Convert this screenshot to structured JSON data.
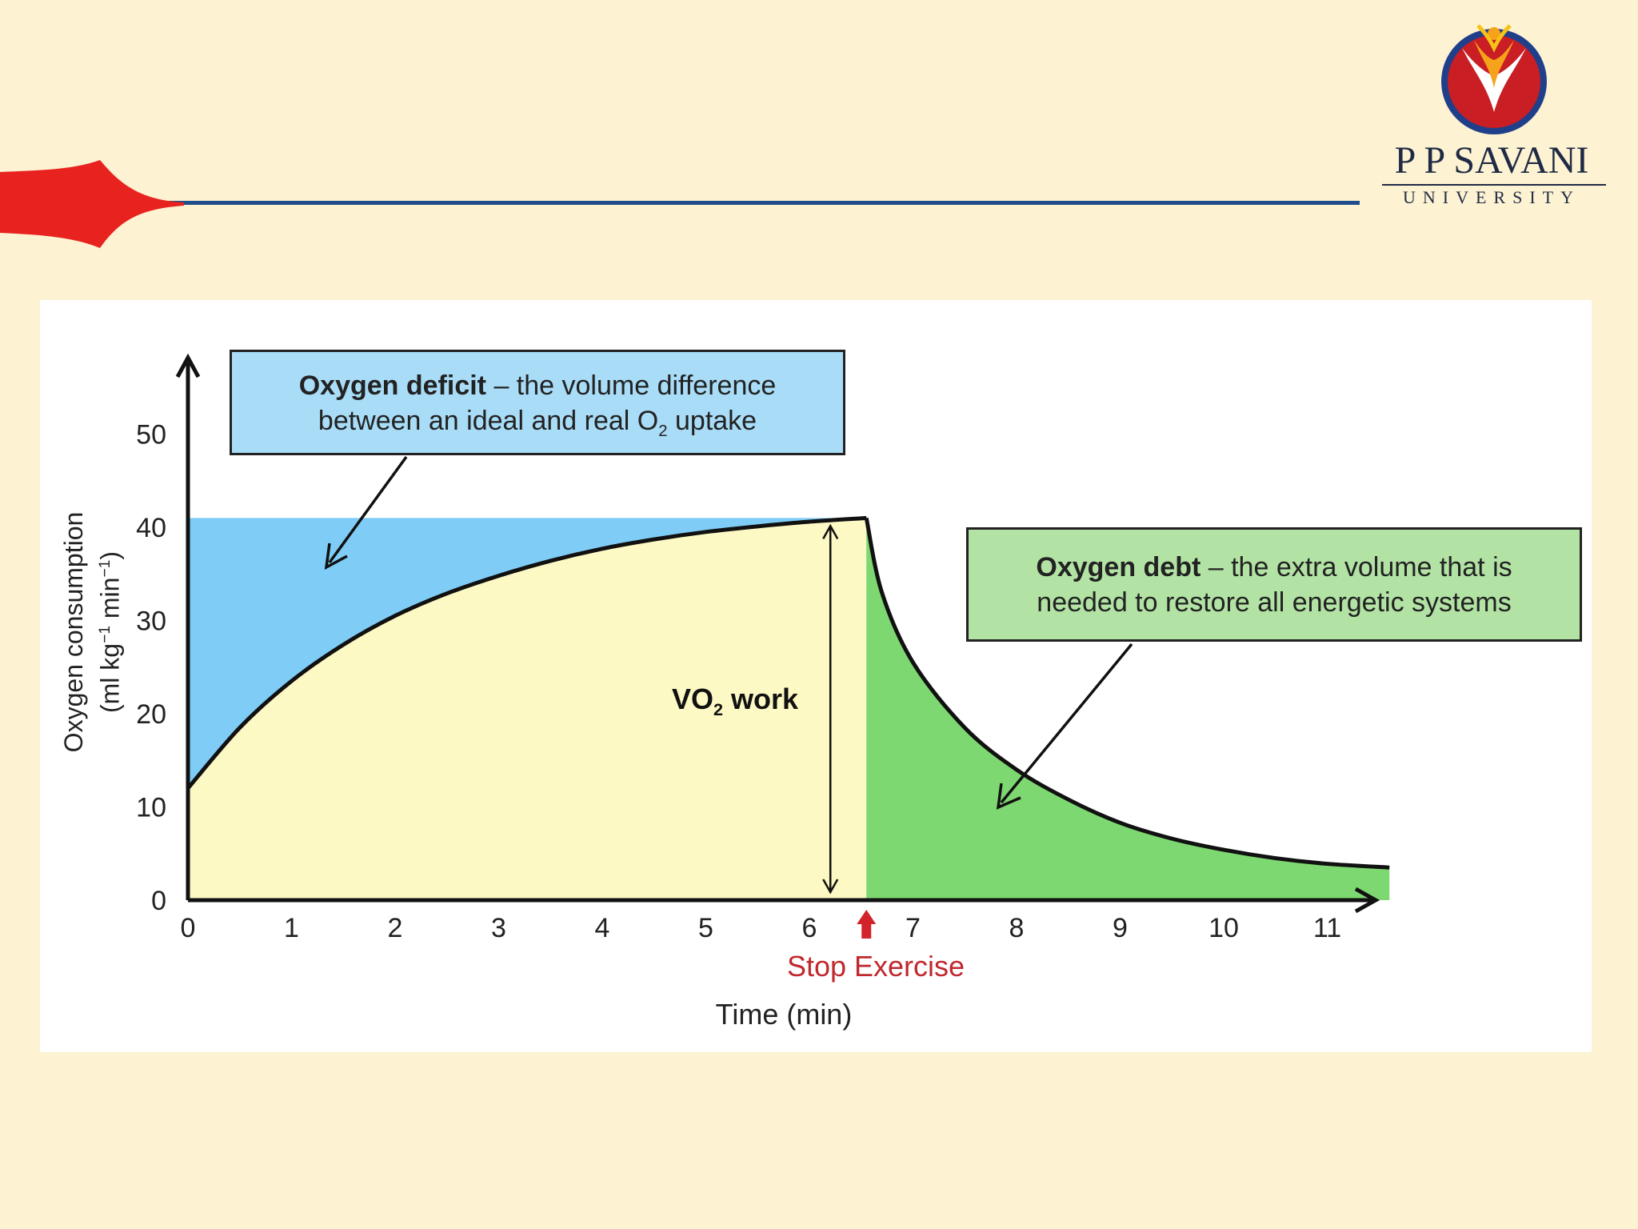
{
  "brand": {
    "name": "P P SAVANI",
    "subtitle": "UNIVERSITY",
    "header_line_color": "#1f4e8c",
    "swoosh_color": "#e8231f"
  },
  "chart_data": {
    "type": "area",
    "xlabel": "Time (min)",
    "ylabel_line1": "Oxygen consumption",
    "ylabel_line2_base": "(ml kg",
    "ylabel_line2_sup1": "−1",
    "ylabel_line2_mid": " min",
    "ylabel_line2_sup2": "−1",
    "ylabel_line2_end": ")",
    "x_ticks": [
      "0",
      "1",
      "2",
      "3",
      "4",
      "5",
      "6",
      "7",
      "8",
      "9",
      "10",
      "11"
    ],
    "y_ticks": [
      "0",
      "10",
      "20",
      "30",
      "40",
      "50"
    ],
    "xlim": [
      0,
      12
    ],
    "ylim": [
      0,
      55
    ],
    "requirement_level": 41,
    "stop_exercise_time": 6.55,
    "curve_uptake": {
      "x": [
        0,
        0.5,
        1,
        1.5,
        2,
        2.5,
        3,
        3.5,
        4,
        4.5,
        5,
        5.5,
        6,
        6.55
      ],
      "y": [
        12,
        18.5,
        23.5,
        27.4,
        30.5,
        32.9,
        34.8,
        36.4,
        37.7,
        38.7,
        39.5,
        40.1,
        40.6,
        41
      ]
    },
    "curve_recovery": {
      "x": [
        6.55,
        6.7,
        7,
        7.5,
        8,
        8.5,
        9,
        9.5,
        10,
        10.5,
        11,
        11.6
      ],
      "y": [
        41,
        33,
        25.5,
        18.5,
        14,
        10.8,
        8.3,
        6.6,
        5.4,
        4.5,
        3.9,
        3.5
      ]
    },
    "colors": {
      "deficit": "#7fcdf6",
      "work": "#fdf9c4",
      "debt": "#7ed871",
      "curve": "#111111"
    },
    "deficit_note": {
      "title": "Oxygen deficit",
      "text_a": " – the volume difference",
      "text_b": "between an ideal and real O",
      "sub": "2",
      "text_c": " uptake"
    },
    "debt_note": {
      "title": "Oxygen debt",
      "text_a": " – the extra volume that is",
      "text_b": "needed to restore all energetic systems"
    },
    "work_label": {
      "base": "VO",
      "sub": "2",
      "rest": " work"
    },
    "stop_label": "Stop Exercise"
  }
}
